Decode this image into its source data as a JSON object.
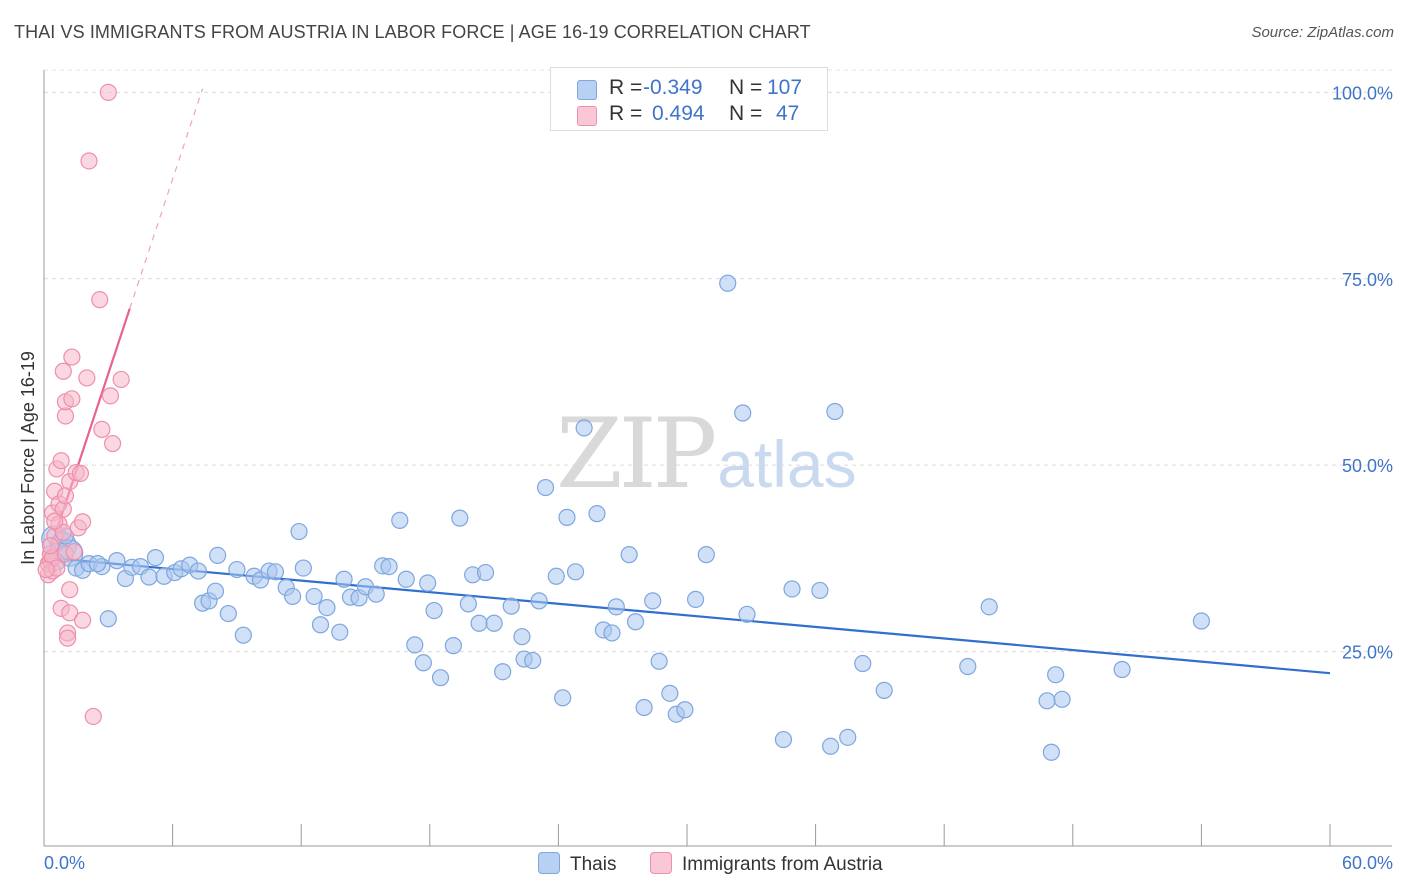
{
  "chart_data": {
    "type": "scatter",
    "title": "THAI VS IMMIGRANTS FROM AUSTRIA IN LABOR FORCE | AGE 16-19 CORRELATION CHART",
    "source": "Source: ZipAtlas.com",
    "xlabel": "",
    "ylabel": "In Labor Force | Age 16-19",
    "x_tick_labels": [
      "0.0%",
      "60.0%"
    ],
    "y_tick_labels": [
      "25.0%",
      "50.0%",
      "75.0%",
      "100.0%"
    ],
    "y_ticks": [
      25,
      50,
      75,
      100
    ],
    "xlim": [
      0,
      60
    ],
    "ylim": [
      0,
      103
    ],
    "grid": true,
    "watermark": {
      "zip": "ZIP",
      "atlas": "atlas"
    },
    "legend_stats": [
      {
        "r_label": "R =",
        "r_value": "-0.349",
        "n_label": "N =",
        "n_value": "107"
      },
      {
        "r_label": "R =",
        "r_value": "0.494",
        "n_label": "N =",
        "n_value": "47"
      }
    ],
    "series": [
      {
        "name": "Thais",
        "color": "#a9c6ef",
        "stroke": "#7ea6df",
        "line_color": "#2f6fce",
        "trend": {
          "x0": 0.1,
          "y0": 37.6,
          "x1": 60,
          "y1": 22.1
        },
        "points": [
          [
            0.5,
            40.1
          ],
          [
            0.9,
            39.2
          ],
          [
            1.2,
            38.2
          ],
          [
            1.5,
            36.2
          ],
          [
            1.8,
            35.9
          ],
          [
            2.1,
            36.8
          ],
          [
            2.7,
            36.4
          ],
          [
            3.0,
            29.4
          ],
          [
            3.4,
            37.2
          ],
          [
            3.8,
            34.8
          ],
          [
            4.1,
            36.3
          ],
          [
            4.5,
            36.4
          ],
          [
            4.9,
            35.0
          ],
          [
            5.2,
            37.6
          ],
          [
            5.6,
            35.1
          ],
          [
            6.1,
            35.6
          ],
          [
            6.4,
            36.1
          ],
          [
            6.8,
            36.6
          ],
          [
            7.2,
            35.8
          ],
          [
            7.4,
            31.5
          ],
          [
            7.7,
            31.8
          ],
          [
            8.0,
            33.1
          ],
          [
            8.1,
            37.9
          ],
          [
            8.6,
            30.1
          ],
          [
            9.0,
            36.0
          ],
          [
            9.3,
            27.2
          ],
          [
            9.8,
            35.1
          ],
          [
            10.1,
            34.6
          ],
          [
            10.5,
            35.8
          ],
          [
            10.8,
            35.7
          ],
          [
            11.3,
            33.6
          ],
          [
            11.6,
            32.4
          ],
          [
            11.9,
            41.1
          ],
          [
            12.1,
            36.2
          ],
          [
            12.6,
            32.4
          ],
          [
            12.9,
            28.6
          ],
          [
            13.2,
            30.9
          ],
          [
            13.8,
            27.6
          ],
          [
            14.0,
            34.7
          ],
          [
            14.3,
            32.3
          ],
          [
            14.7,
            32.2
          ],
          [
            15.0,
            33.7
          ],
          [
            15.5,
            32.7
          ],
          [
            15.8,
            36.5
          ],
          [
            16.1,
            36.4
          ],
          [
            16.6,
            42.6
          ],
          [
            16.9,
            34.7
          ],
          [
            17.3,
            25.9
          ],
          [
            17.7,
            23.5
          ],
          [
            17.9,
            34.2
          ],
          [
            18.2,
            30.5
          ],
          [
            18.5,
            21.5
          ],
          [
            19.1,
            25.8
          ],
          [
            19.4,
            42.9
          ],
          [
            19.8,
            31.4
          ],
          [
            20.0,
            35.3
          ],
          [
            20.3,
            28.8
          ],
          [
            20.6,
            35.6
          ],
          [
            21.0,
            28.8
          ],
          [
            21.4,
            22.3
          ],
          [
            21.8,
            31.1
          ],
          [
            22.3,
            27.0
          ],
          [
            22.4,
            24.0
          ],
          [
            22.8,
            23.8
          ],
          [
            23.1,
            31.8
          ],
          [
            23.4,
            47.0
          ],
          [
            23.9,
            35.1
          ],
          [
            24.2,
            18.8
          ],
          [
            24.4,
            43.0
          ],
          [
            24.8,
            35.7
          ],
          [
            25.2,
            55.0
          ],
          [
            25.8,
            43.5
          ],
          [
            26.1,
            27.9
          ],
          [
            26.5,
            27.5
          ],
          [
            26.7,
            31.0
          ],
          [
            27.3,
            38.0
          ],
          [
            27.6,
            29.0
          ],
          [
            28.0,
            17.5
          ],
          [
            28.4,
            31.8
          ],
          [
            28.7,
            23.7
          ],
          [
            29.2,
            19.4
          ],
          [
            29.5,
            16.6
          ],
          [
            29.9,
            17.2
          ],
          [
            30.4,
            32.0
          ],
          [
            30.9,
            38.0
          ],
          [
            31.9,
            74.4
          ],
          [
            32.6,
            57.0
          ],
          [
            32.8,
            30.0
          ],
          [
            34.5,
            13.2
          ],
          [
            34.9,
            33.4
          ],
          [
            36.2,
            33.2
          ],
          [
            36.7,
            12.3
          ],
          [
            36.9,
            57.2
          ],
          [
            37.5,
            13.5
          ],
          [
            38.2,
            23.4
          ],
          [
            39.2,
            19.8
          ],
          [
            43.1,
            23.0
          ],
          [
            44.1,
            31.0
          ],
          [
            46.8,
            18.4
          ],
          [
            47.2,
            21.9
          ],
          [
            47.5,
            18.6
          ],
          [
            47.0,
            11.5
          ],
          [
            50.3,
            22.6
          ],
          [
            54.0,
            29.1
          ],
          [
            0.6,
            37.0
          ],
          [
            1.0,
            40.5
          ],
          [
            2.5,
            36.8
          ]
        ],
        "sizes": {
          "big": [
            [
              0.9,
              39.2
            ],
            [
              1.2,
              38.2
            ],
            [
              0.5,
              40.1
            ]
          ]
        }
      },
      {
        "name": "Immigrants from Austria",
        "color": "#f6b6c9",
        "stroke": "#ee8fac",
        "line_color": "#e8638d",
        "trend": {
          "x0": 0.1,
          "y0": 37.0,
          "x1": 4.0,
          "y1": 71.0,
          "dash_to": {
            "x": 7.4,
            "y": 100.5
          }
        },
        "points": [
          [
            0.2,
            35.3
          ],
          [
            0.2,
            36.8
          ],
          [
            0.3,
            37.2
          ],
          [
            0.3,
            38.1
          ],
          [
            0.4,
            35.8
          ],
          [
            0.4,
            37.6
          ],
          [
            0.4,
            43.6
          ],
          [
            0.5,
            40.5
          ],
          [
            0.5,
            46.5
          ],
          [
            0.6,
            36.2
          ],
          [
            0.6,
            49.5
          ],
          [
            0.7,
            42.1
          ],
          [
            0.7,
            44.8
          ],
          [
            0.8,
            50.6
          ],
          [
            0.8,
            30.8
          ],
          [
            0.9,
            41.0
          ],
          [
            0.9,
            44.1
          ],
          [
            1.0,
            38.1
          ],
          [
            1.0,
            45.9
          ],
          [
            1.0,
            56.6
          ],
          [
            1.0,
            58.5
          ],
          [
            1.1,
            27.5
          ],
          [
            1.2,
            47.8
          ],
          [
            1.2,
            33.3
          ],
          [
            1.2,
            30.2
          ],
          [
            1.3,
            64.5
          ],
          [
            1.3,
            58.9
          ],
          [
            1.4,
            38.4
          ],
          [
            1.5,
            49.0
          ],
          [
            1.6,
            41.6
          ],
          [
            1.7,
            48.9
          ],
          [
            1.8,
            42.4
          ],
          [
            1.8,
            29.2
          ],
          [
            2.0,
            61.7
          ],
          [
            2.1,
            90.8
          ],
          [
            2.3,
            16.3
          ],
          [
            2.7,
            54.8
          ],
          [
            2.6,
            72.2
          ],
          [
            3.1,
            59.3
          ],
          [
            3.2,
            52.9
          ],
          [
            3.6,
            61.5
          ],
          [
            3.0,
            100.0
          ],
          [
            0.3,
            39.2
          ],
          [
            0.5,
            42.5
          ],
          [
            1.1,
            26.8
          ],
          [
            0.9,
            62.6
          ],
          [
            0.1,
            36.0
          ]
        ]
      }
    ]
  }
}
